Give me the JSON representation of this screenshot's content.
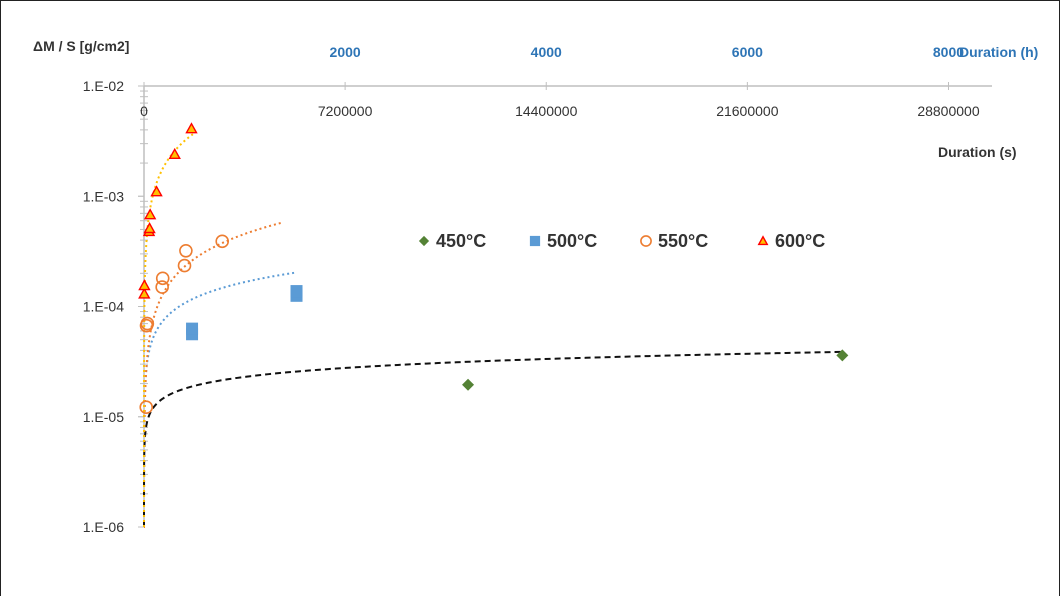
{
  "chart_data": {
    "type": "scatter",
    "y_scale": "log",
    "ylabel": "ΔM / S [g/cm2]",
    "xlabel_bottom": "Duration (s)",
    "xlabel_top": "Duration (h)",
    "ylim": [
      1e-06,
      0.01
    ],
    "xlim_s": [
      0,
      33000000
    ],
    "y_ticks": [
      {
        "value": 0.01,
        "label": "1.E-02"
      },
      {
        "value": 0.001,
        "label": "1.E-03"
      },
      {
        "value": 0.0001,
        "label": "1.E-04"
      },
      {
        "value": 1e-05,
        "label": "1.E-05"
      },
      {
        "value": 1e-06,
        "label": "1.E-06"
      }
    ],
    "x_ticks_bottom": [
      {
        "value": 0,
        "label": "0"
      },
      {
        "value": 7200000,
        "label": "7200000"
      },
      {
        "value": 14400000,
        "label": "14400000"
      },
      {
        "value": 21600000,
        "label": "21600000"
      },
      {
        "value": 28800000,
        "label": "28800000"
      }
    ],
    "x_ticks_top": [
      {
        "value": 2000,
        "label": "2000"
      },
      {
        "value": 4000,
        "label": "4000"
      },
      {
        "value": 6000,
        "label": "6000"
      },
      {
        "value": 8000,
        "label": "8000"
      }
    ],
    "series": [
      {
        "name": "450°C",
        "color": "#548235",
        "marker": "diamond",
        "points": [
          [
            11600000,
            1.95e-05
          ],
          [
            25000000,
            3.6e-05
          ]
        ],
        "trend": {
          "a": 3.9e-07,
          "n": 0.27,
          "x_end": 25000000,
          "style": "dashed",
          "color": "#111111"
        }
      },
      {
        "name": "500°C",
        "color": "#5b9bd5",
        "marker": "square",
        "points": [
          [
            1720000,
            5.6e-05
          ],
          [
            1720000,
            6.3e-05
          ],
          [
            5460000,
            0.000125
          ],
          [
            5460000,
            0.000138
          ]
        ],
        "trend": {
          "a": 1.1e-07,
          "n": 0.485,
          "x_end": 5460000,
          "style": "dotted",
          "color": "#5b9bd5"
        }
      },
      {
        "name": "550°C",
        "color": "#ed7d31",
        "marker": "circle",
        "points": [
          [
            80000,
            1.22e-05
          ],
          [
            90000,
            6.7e-05
          ],
          [
            120000,
            7e-05
          ],
          [
            650000,
            0.00015
          ],
          [
            670000,
            0.00018
          ],
          [
            1450000,
            0.000235
          ],
          [
            1500000,
            0.00032
          ],
          [
            2800000,
            0.00039
          ]
        ],
        "trend": {
          "a": 5.5e-09,
          "n": 0.75,
          "x_end": 4900000,
          "style": "dotted",
          "color": "#ed7d31"
        }
      },
      {
        "name": "600°C",
        "color": "#ff0000",
        "fill": "#ffc000",
        "marker": "triangle",
        "points": [
          [
            10000,
            0.00013
          ],
          [
            15000,
            0.000155
          ],
          [
            180000,
            0.00048
          ],
          [
            200000,
            0.00051
          ],
          [
            220000,
            0.00068
          ],
          [
            450000,
            0.0011
          ],
          [
            1100000,
            0.0024
          ],
          [
            1700000,
            0.0041
          ]
        ],
        "trend": {
          "a": 7.6e-08,
          "n": 0.75,
          "x_end": 1750000,
          "style": "dotted",
          "color": "#ffc000"
        }
      }
    ]
  }
}
